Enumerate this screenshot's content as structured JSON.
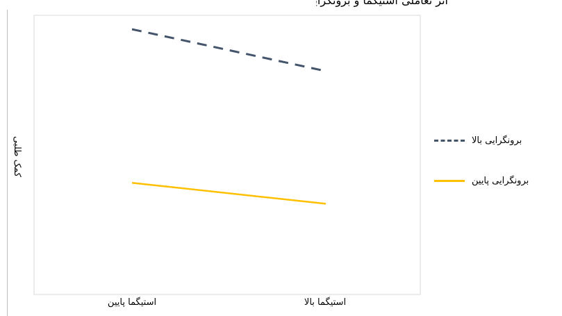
{
  "chart_data": {
    "type": "line",
    "title": "اثر تعاملی استیگما و برونگرایی",
    "ylabel": "کمک طلبی",
    "categories": [
      "استیگما پایین",
      "استیگما بالا"
    ],
    "series": [
      {
        "name": "برونگرایی بالا",
        "values": [
          5.6,
          5.0
        ],
        "color": "#44546a",
        "style": "dashed"
      },
      {
        "name": "برونگرایی پایین",
        "values": [
          3.4,
          3.1
        ],
        "color": "#ffc000",
        "style": "solid"
      }
    ],
    "ylim": [
      1.8,
      5.8
    ],
    "grid": false,
    "legend": "right"
  }
}
